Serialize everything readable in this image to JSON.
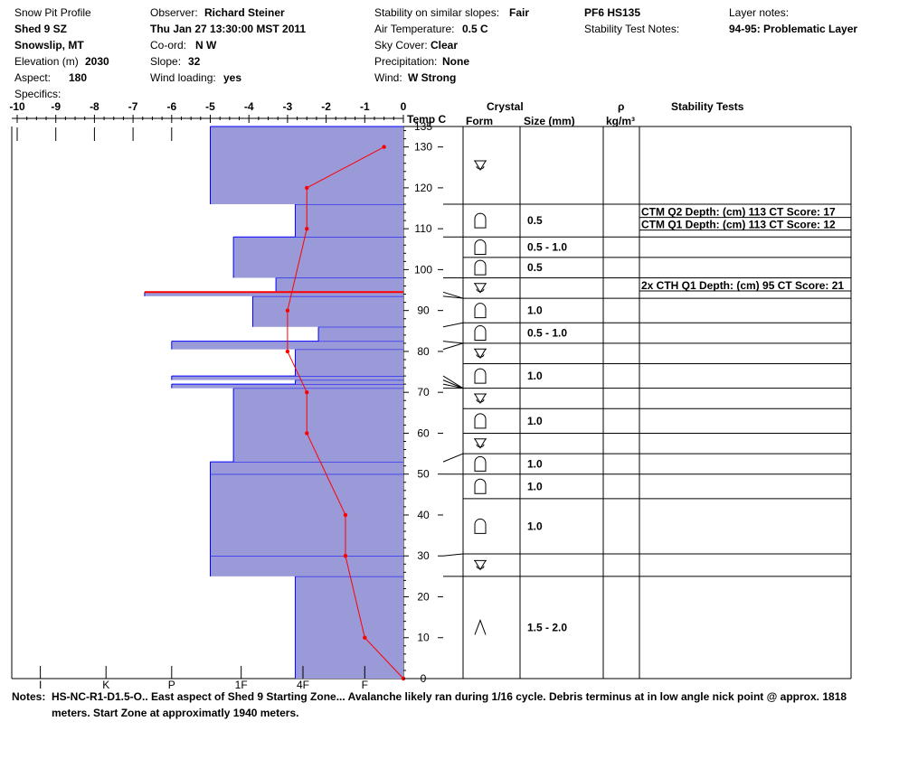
{
  "header": {
    "col1": {
      "title": "Snow Pit Profile",
      "site": "Shed 9 SZ",
      "location": "Snowslip, MT",
      "elevation_label": "Elevation (m)",
      "elevation_value": "2030",
      "aspect_label": "Aspect:",
      "aspect_value": "180",
      "specifics_label": "Specifics:"
    },
    "col2": {
      "observer_label": "Observer:",
      "observer_value": "Richard Steiner",
      "datetime": "Thu Jan 27 13:30:00 MST 2011",
      "coord_label": "Co-ord:",
      "coord_value": "N  W",
      "slope_label": "Slope:",
      "slope_value": "32",
      "wind_loading_label": "Wind loading:",
      "wind_loading_value": "yes"
    },
    "col3": {
      "stability_label": "Stability on similar slopes:",
      "stability_value": "Fair",
      "air_temp_label": "Air Temperature:",
      "air_temp_value": "0.5 C",
      "sky_label": "Sky Cover:",
      "sky_value": "Clear",
      "precip_label": "Precipitation:",
      "precip_value": "None",
      "wind_label": "Wind:",
      "wind_value": "W Strong"
    },
    "col4": {
      "pit_id": "PF6 HS135",
      "stability_notes_label": "Stability Test Notes:"
    },
    "col5": {
      "layer_notes_label": "Layer notes:",
      "layer_notes_value": "94-95: Problematic Layer"
    }
  },
  "columns": {
    "temp": "Temp C",
    "crystal": "Crystal",
    "form": "Form",
    "size": "Size (mm)",
    "rho": "ρ",
    "density_unit": "kg/m³",
    "stability": "Stability Tests"
  },
  "notes": {
    "label": "Notes:",
    "line1": "HS-NC-R1-D1.5-O.. East aspect of Shed 9 Starting Zone...  Avalanche likely ran during 1/16 cycle.  Debris terminus at in low angle nick point @ approx. 1818",
    "line2": "meters.  Start Zone at approximatly 1940 meters."
  },
  "colors": {
    "hardness_fill": "#9a9ad8",
    "hardness_edge": "#0000ff",
    "temp_line": "#ff0000",
    "grid": "#000000"
  },
  "chart_data": {
    "type": "snow-profile",
    "temperature_axis": {
      "label": "",
      "range": [
        -10,
        0
      ],
      "ticks": [
        "-10",
        "-9",
        "-8",
        "-7",
        "-6",
        "-5",
        "-4",
        "-3",
        "-2",
        "-1",
        "0"
      ]
    },
    "depth_axis": {
      "range": [
        0,
        135
      ],
      "ticks": [
        "0",
        "10",
        "20",
        "30",
        "40",
        "50",
        "60",
        "70",
        "80",
        "90",
        "100",
        "110",
        "120",
        "130",
        "135"
      ]
    },
    "hardness_axis": {
      "ticks": [
        "I",
        "K",
        "P",
        "1F",
        "4F",
        "F"
      ],
      "positions": [
        -9.4,
        -7.7,
        -6.0,
        -4.2,
        -2.6,
        -1.0
      ]
    },
    "temperature_profile": [
      {
        "depth": 0,
        "temp": 0.0
      },
      {
        "depth": 10,
        "temp": -1.0
      },
      {
        "depth": 30,
        "temp": -1.5
      },
      {
        "depth": 40,
        "temp": -1.5
      },
      {
        "depth": 60,
        "temp": -2.5
      },
      {
        "depth": 70,
        "temp": -2.5
      },
      {
        "depth": 80,
        "temp": -3.0
      },
      {
        "depth": 90,
        "temp": -3.0
      },
      {
        "depth": 110,
        "temp": -2.5
      },
      {
        "depth": 120,
        "temp": -2.5
      },
      {
        "depth": 130,
        "temp": -0.5
      }
    ],
    "hardness_layers": [
      {
        "bottom": 0,
        "top": 25,
        "extent": -2.8
      },
      {
        "bottom": 25,
        "top": 30,
        "extent": -5.0
      },
      {
        "bottom": 30,
        "top": 50,
        "extent": -5.0
      },
      {
        "bottom": 50,
        "top": 53,
        "extent": -5.0
      },
      {
        "bottom": 53,
        "top": 71,
        "extent": -4.4
      },
      {
        "bottom": 71,
        "top": 72,
        "extent": -6.0
      },
      {
        "bottom": 72,
        "top": 73,
        "extent": -2.8
      },
      {
        "bottom": 73,
        "top": 74,
        "extent": -6.0
      },
      {
        "bottom": 74,
        "top": 80.5,
        "extent": -2.8
      },
      {
        "bottom": 80.5,
        "top": 82.5,
        "extent": -6.0
      },
      {
        "bottom": 82.5,
        "top": 86,
        "extent": -2.2
      },
      {
        "bottom": 86,
        "top": 93.5,
        "extent": -3.9
      },
      {
        "bottom": 93.5,
        "top": 94.5,
        "extent": -6.7
      },
      {
        "bottom": 94.5,
        "top": 98,
        "extent": -3.3
      },
      {
        "bottom": 98,
        "top": 108,
        "extent": -4.4
      },
      {
        "bottom": 108,
        "top": 116,
        "extent": -2.8
      },
      {
        "bottom": 116,
        "top": 135,
        "extent": -5.0
      }
    ],
    "problematic_layer": {
      "depth": 94.5
    },
    "crystal_layers": [
      {
        "bottom": 116,
        "top": 135,
        "form": "facet-rounding",
        "size": ""
      },
      {
        "bottom": 108,
        "top": 116,
        "form": "rounded",
        "size": "0.5"
      },
      {
        "bottom": 103,
        "top": 108,
        "form": "rounded",
        "size": "0.5 - 1.0"
      },
      {
        "bottom": 98,
        "top": 103,
        "form": "rounded",
        "size": "0.5"
      },
      {
        "bottom": 93,
        "top": 98,
        "form": "facet-rounding",
        "size": ""
      },
      {
        "bottom": 87,
        "top": 93,
        "form": "rounded",
        "size": "1.0"
      },
      {
        "bottom": 82,
        "top": 87,
        "form": "rounded",
        "size": "0.5 - 1.0"
      },
      {
        "bottom": 77,
        "top": 82,
        "form": "facet-rounding",
        "size": ""
      },
      {
        "bottom": 71,
        "top": 77,
        "form": "rounded",
        "size": "1.0"
      },
      {
        "bottom": 66,
        "top": 71,
        "form": "facet-rounding",
        "size": ""
      },
      {
        "bottom": 60,
        "top": 66,
        "form": "rounded",
        "size": "1.0"
      },
      {
        "bottom": 55,
        "top": 60,
        "form": "facet-rounding",
        "size": ""
      },
      {
        "bottom": 50,
        "top": 55,
        "form": "rounded",
        "size": "1.0"
      },
      {
        "bottom": 44,
        "top": 50,
        "form": "rounded",
        "size": "1.0"
      },
      {
        "bottom": 30.5,
        "top": 44,
        "form": "rounded",
        "size": "1.0"
      },
      {
        "bottom": 25,
        "top": 30.5,
        "form": "facet-rounding",
        "size": ""
      },
      {
        "bottom": 0,
        "top": 25,
        "form": "depth-hoar",
        "size": "1.5 - 2.0"
      }
    ],
    "layer_boundaries": [
      0,
      25,
      30,
      50,
      53,
      71,
      72,
      73,
      74,
      80.5,
      82.5,
      86,
      93.5,
      94.5,
      98,
      108,
      116,
      135
    ],
    "stability_tests": [
      {
        "text": "CTM Q2 Depth: (cm) 113 CT Score: 17",
        "depth": 113
      },
      {
        "text": "CTM Q1 Depth: (cm) 113 CT Score: 12",
        "depth": 113
      },
      {
        "text": "2x CTH Q1 Depth: (cm) 95 CT Score: 21",
        "depth": 95
      }
    ]
  }
}
